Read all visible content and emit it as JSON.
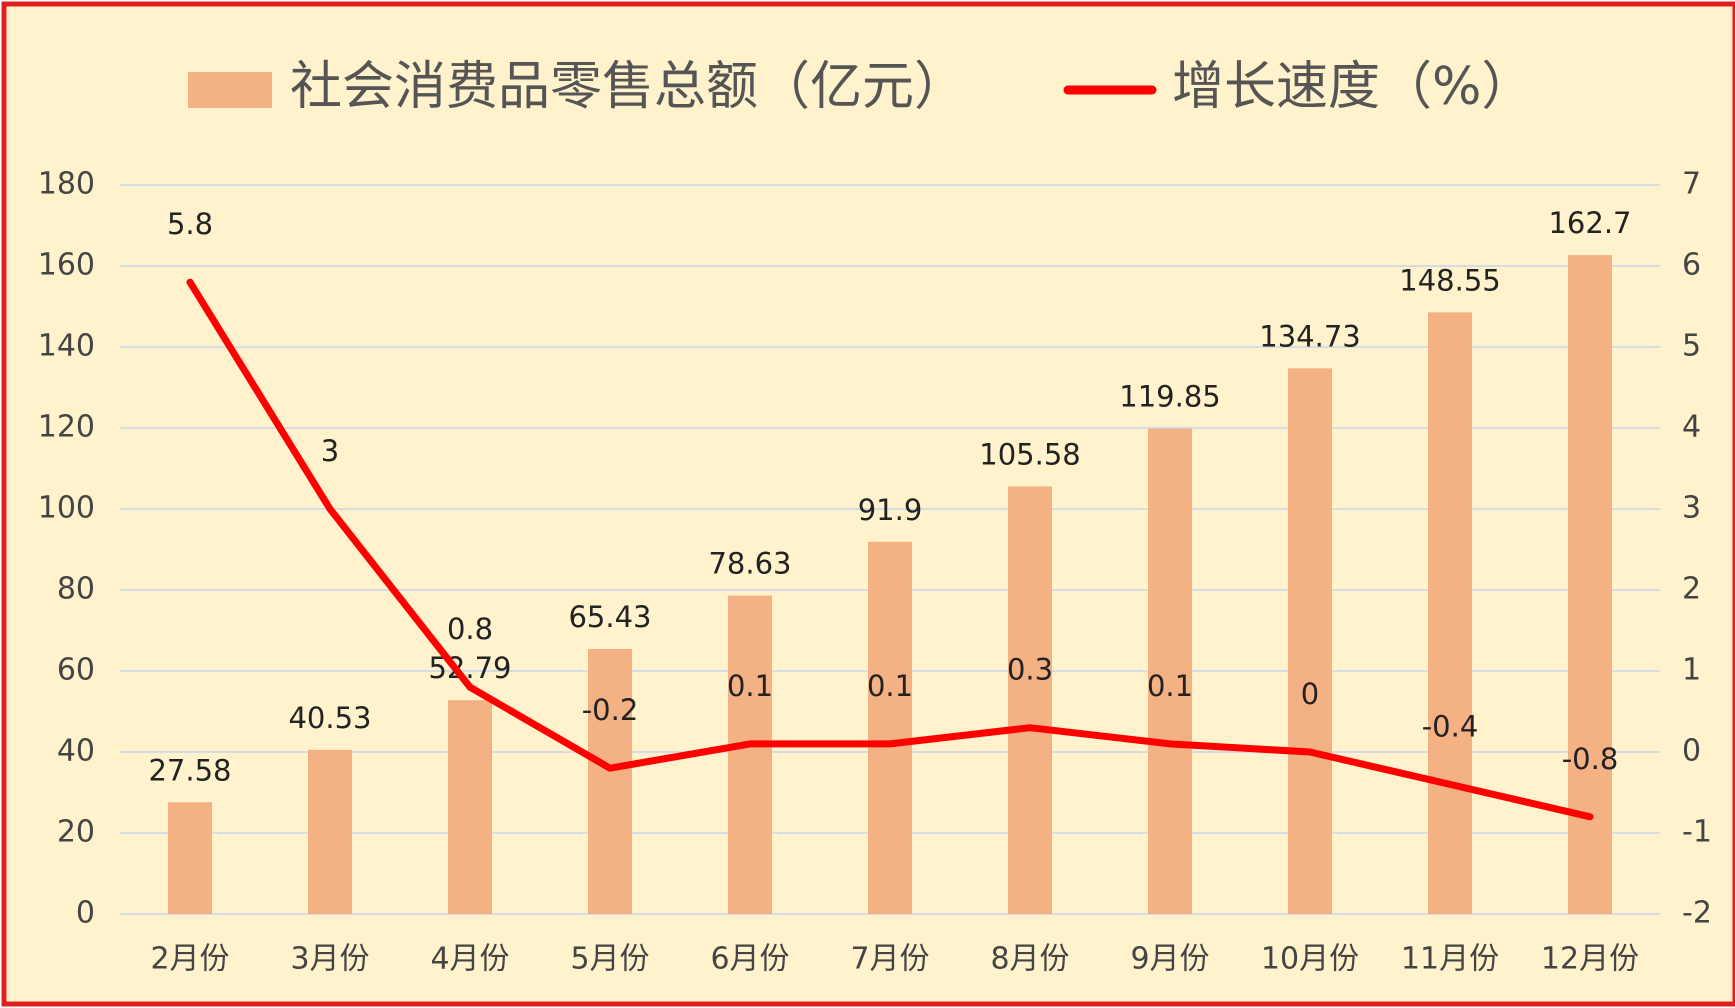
{
  "chart_data": {
    "type": "bar",
    "categories": [
      "2月份",
      "3月份",
      "4月份",
      "5月份",
      "6月份",
      "7月份",
      "8月份",
      "9月份",
      "10月份",
      "11月份",
      "12月份"
    ],
    "series": [
      {
        "name": "社会消费品零售总额（亿元）",
        "type": "bar",
        "color": "#f4b183",
        "values": [
          27.58,
          40.53,
          52.79,
          65.43,
          78.63,
          91.9,
          105.58,
          119.85,
          134.73,
          148.55,
          162.7
        ]
      },
      {
        "name": "增长速度（%）",
        "type": "line",
        "axis": "y2",
        "color": "#ff0000",
        "values": [
          5.8,
          3,
          0.8,
          -0.2,
          0.1,
          0.1,
          0.3,
          0.1,
          0,
          -0.4,
          -0.8
        ]
      }
    ],
    "ylim": [
      0,
      180
    ],
    "yticks": [
      0,
      20,
      40,
      60,
      80,
      100,
      120,
      140,
      160,
      180
    ],
    "y2lim": [
      -2,
      7
    ],
    "y2ticks": [
      -2,
      -1,
      0,
      1,
      2,
      3,
      4,
      5,
      6,
      7
    ],
    "grid": true,
    "legend": "top"
  }
}
